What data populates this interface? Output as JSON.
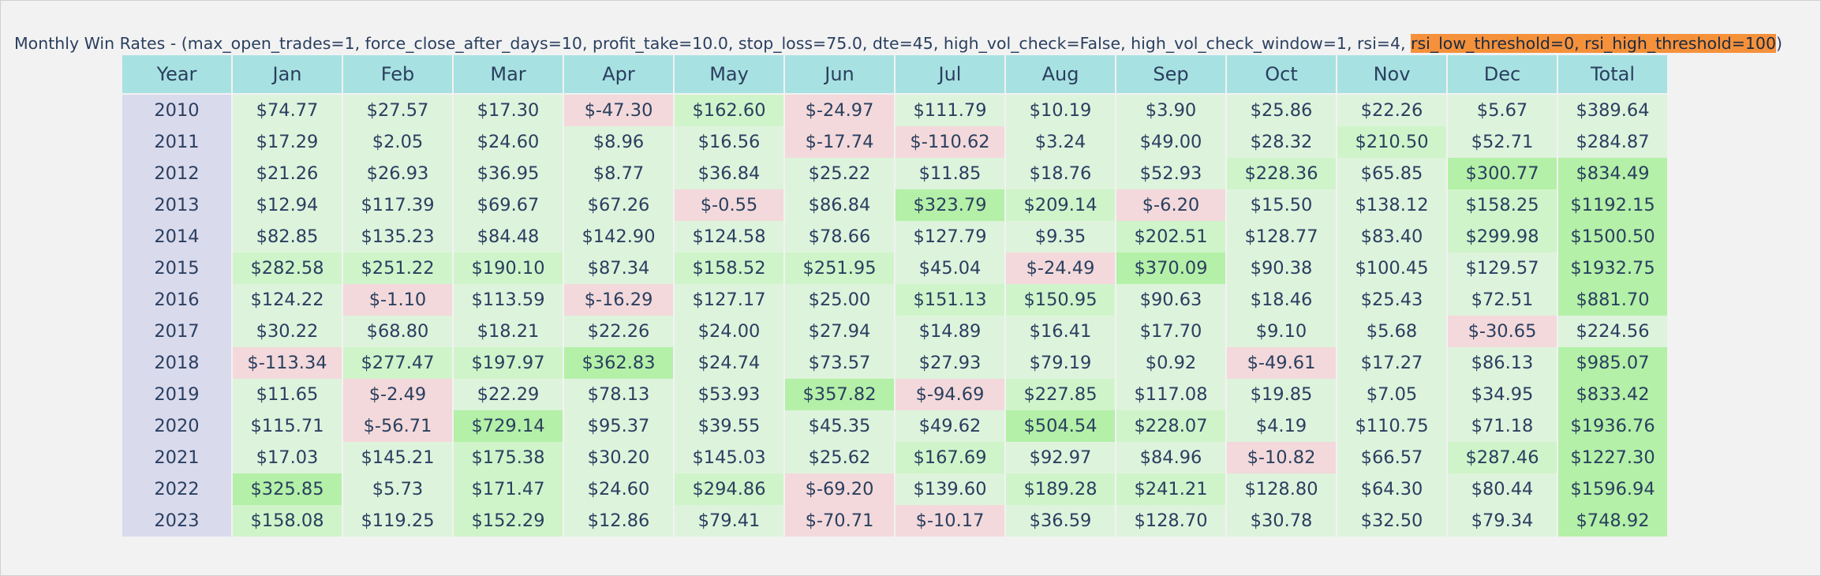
{
  "title": {
    "prefix": "Monthly Win Rates - (max_open_trades=1, force_close_after_days=10, profit_take=10.0, stop_loss=75.0, dte=45, high_vol_check=False, high_vol_check_window=1, rsi=4, ",
    "highlight": "rsi_low_threshold=0, rsi_high_threshold=100",
    "suffix": ")"
  },
  "colors": {
    "header": "#a8e1e1",
    "year": "#dadaed",
    "positive_light": "#def3dc",
    "positive_mid": "#d0f4ca",
    "positive_strong": "#b4f0a8",
    "negative": "#f3d9db",
    "highlight": "#f5913b"
  },
  "chart_data": {
    "type": "table",
    "columns": [
      "Year",
      "Jan",
      "Feb",
      "Mar",
      "Apr",
      "May",
      "Jun",
      "Jul",
      "Aug",
      "Sep",
      "Oct",
      "Nov",
      "Dec",
      "Total"
    ],
    "rows": [
      [
        "2010",
        "$74.77",
        "$27.57",
        "$17.30",
        "$-47.30",
        "$162.60",
        "$-24.97",
        "$111.79",
        "$10.19",
        "$3.90",
        "$25.86",
        "$22.26",
        "$5.67",
        "$389.64"
      ],
      [
        "2011",
        "$17.29",
        "$2.05",
        "$24.60",
        "$8.96",
        "$16.56",
        "$-17.74",
        "$-110.62",
        "$3.24",
        "$49.00",
        "$28.32",
        "$210.50",
        "$52.71",
        "$284.87"
      ],
      [
        "2012",
        "$21.26",
        "$26.93",
        "$36.95",
        "$8.77",
        "$36.84",
        "$25.22",
        "$11.85",
        "$18.76",
        "$52.93",
        "$228.36",
        "$65.85",
        "$300.77",
        "$834.49"
      ],
      [
        "2013",
        "$12.94",
        "$117.39",
        "$69.67",
        "$67.26",
        "$-0.55",
        "$86.84",
        "$323.79",
        "$209.14",
        "$-6.20",
        "$15.50",
        "$138.12",
        "$158.25",
        "$1192.15"
      ],
      [
        "2014",
        "$82.85",
        "$135.23",
        "$84.48",
        "$142.90",
        "$124.58",
        "$78.66",
        "$127.79",
        "$9.35",
        "$202.51",
        "$128.77",
        "$83.40",
        "$299.98",
        "$1500.50"
      ],
      [
        "2015",
        "$282.58",
        "$251.22",
        "$190.10",
        "$87.34",
        "$158.52",
        "$251.95",
        "$45.04",
        "$-24.49",
        "$370.09",
        "$90.38",
        "$100.45",
        "$129.57",
        "$1932.75"
      ],
      [
        "2016",
        "$124.22",
        "$-1.10",
        "$113.59",
        "$-16.29",
        "$127.17",
        "$25.00",
        "$151.13",
        "$150.95",
        "$90.63",
        "$18.46",
        "$25.43",
        "$72.51",
        "$881.70"
      ],
      [
        "2017",
        "$30.22",
        "$68.80",
        "$18.21",
        "$22.26",
        "$24.00",
        "$27.94",
        "$14.89",
        "$16.41",
        "$17.70",
        "$9.10",
        "$5.68",
        "$-30.65",
        "$224.56"
      ],
      [
        "2018",
        "$-113.34",
        "$277.47",
        "$197.97",
        "$362.83",
        "$24.74",
        "$73.57",
        "$27.93",
        "$79.19",
        "$0.92",
        "$-49.61",
        "$17.27",
        "$86.13",
        "$985.07"
      ],
      [
        "2019",
        "$11.65",
        "$-2.49",
        "$22.29",
        "$78.13",
        "$53.93",
        "$357.82",
        "$-94.69",
        "$227.85",
        "$117.08",
        "$19.85",
        "$7.05",
        "$34.95",
        "$833.42"
      ],
      [
        "2020",
        "$115.71",
        "$-56.71",
        "$729.14",
        "$95.37",
        "$39.55",
        "$45.35",
        "$49.62",
        "$504.54",
        "$228.07",
        "$4.19",
        "$110.75",
        "$71.18",
        "$1936.76"
      ],
      [
        "2021",
        "$17.03",
        "$145.21",
        "$175.38",
        "$30.20",
        "$145.03",
        "$25.62",
        "$167.69",
        "$92.97",
        "$84.96",
        "$-10.82",
        "$66.57",
        "$287.46",
        "$1227.30"
      ],
      [
        "2022",
        "$325.85",
        "$5.73",
        "$171.47",
        "$24.60",
        "$294.86",
        "$-69.20",
        "$139.60",
        "$189.28",
        "$241.21",
        "$128.80",
        "$64.30",
        "$80.44",
        "$1596.94"
      ],
      [
        "2023",
        "$158.08",
        "$119.25",
        "$152.29",
        "$12.86",
        "$79.41",
        "$-70.71",
        "$-10.17",
        "$36.59",
        "$128.70",
        "$30.78",
        "$32.50",
        "$79.34",
        "$748.92"
      ]
    ]
  }
}
